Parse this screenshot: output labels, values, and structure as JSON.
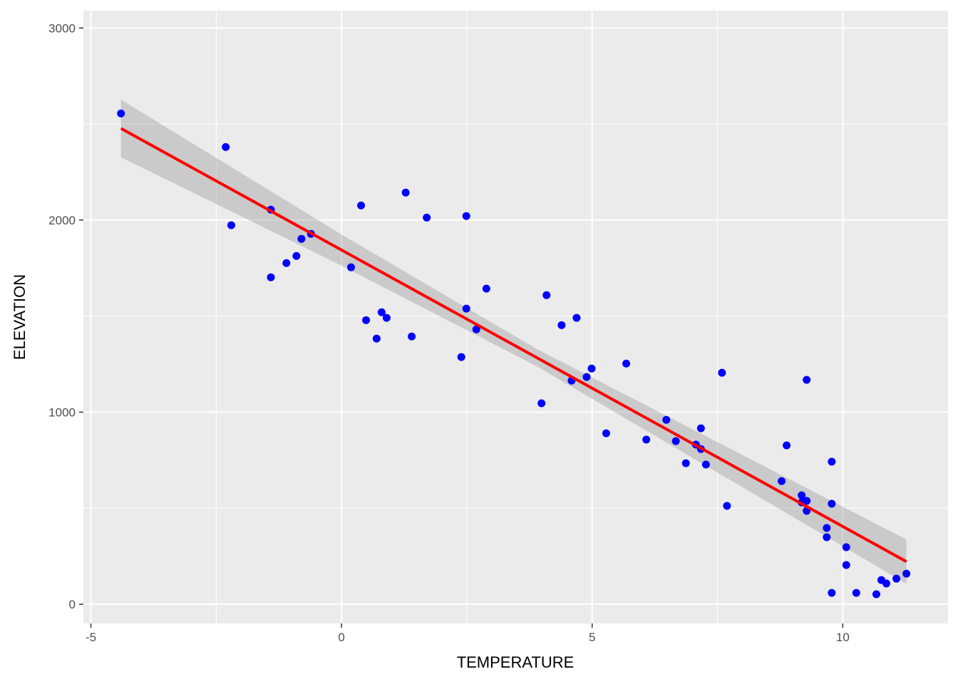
{
  "chart_data": {
    "type": "scatter",
    "title": "",
    "xlabel": "TEMPERATURE",
    "ylabel": "ELEVATION",
    "xlim": [
      -5.15,
      12.1
    ],
    "ylim": [
      -100,
      3090
    ],
    "x_ticks": [
      -5,
      0,
      5,
      10
    ],
    "x_tick_labels": [
      "-5",
      "0",
      "5",
      "10"
    ],
    "y_ticks": [
      0,
      1000,
      2000,
      3000
    ],
    "y_tick_labels": [
      "0",
      "1000",
      "2000",
      "3000"
    ],
    "grid": true,
    "legend": "none",
    "colors": {
      "points": "#0000ff",
      "fit_line": "#ff0000",
      "confidence_band": "#999999",
      "panel": "#ebebeb",
      "grid": "#ffffff"
    },
    "points": {
      "x": [
        -4.4,
        -2.31,
        -2.2,
        -1.41,
        -1.41,
        -1.1,
        -0.9,
        -0.8,
        -0.61,
        0.19,
        0.39,
        0.49,
        0.7,
        0.8,
        0.9,
        1.28,
        1.4,
        1.7,
        2.39,
        2.49,
        2.49,
        2.69,
        2.89,
        3.99,
        4.09,
        4.39,
        4.59,
        4.69,
        4.89,
        4.99,
        5.28,
        5.68,
        6.08,
        6.48,
        6.67,
        6.87,
        7.07,
        7.17,
        7.17,
        7.27,
        7.59,
        7.69,
        8.78,
        8.88,
        9.18,
        9.18,
        9.28,
        9.28,
        9.28,
        9.68,
        9.68,
        9.78,
        9.78,
        9.78,
        10.07,
        10.07,
        10.27,
        10.67,
        10.77,
        10.87,
        11.07,
        11.27
      ],
      "y": [
        2555,
        2380,
        1973,
        2054,
        1702,
        1776,
        1813,
        1902,
        1928,
        1754,
        2076,
        1479,
        1383,
        1520,
        1491,
        2143,
        1394,
        2013,
        1287,
        2021,
        1539,
        1431,
        1643,
        1046,
        1609,
        1453,
        1164,
        1491,
        1183,
        1227,
        890,
        1253,
        857,
        960,
        849,
        734,
        831,
        916,
        808,
        727,
        1205,
        512,
        641,
        827,
        567,
        530,
        538,
        486,
        1168,
        397,
        349,
        742,
        523,
        59,
        297,
        204,
        59,
        52,
        126,
        108,
        133,
        159
      ]
    },
    "fit": {
      "x": [
        -4.4,
        0,
        3.9,
        8,
        11.27
      ],
      "y": [
        2477,
        1844,
        1283,
        693,
        222
      ],
      "lower": [
        2327,
        1763,
        1238,
        609,
        107
      ],
      "upper": [
        2627,
        1925,
        1328,
        777,
        337
      ]
    }
  }
}
